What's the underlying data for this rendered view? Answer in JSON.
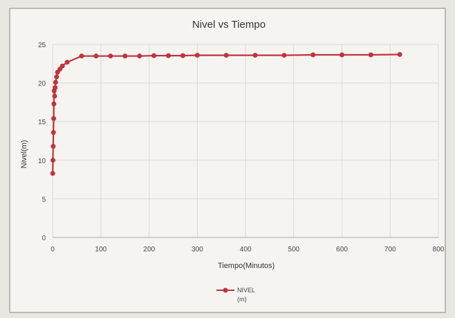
{
  "chart_data": {
    "type": "line",
    "title": "Nivel vs Tiempo",
    "xlabel": "Tiempo(Minutos)",
    "ylabel": "Nivel(m)",
    "xlim": [
      0,
      800
    ],
    "ylim": [
      0,
      25
    ],
    "x_ticks": [
      "0",
      "100",
      "200",
      "300",
      "400",
      "500",
      "600",
      "700",
      "800"
    ],
    "y_ticks": [
      "0",
      "5",
      "10",
      "15",
      "20",
      "25"
    ],
    "grid": true,
    "legend_position": "bottom",
    "series": [
      {
        "name": "NIVEL (m)",
        "legend_lines": [
          "NIVEL",
          "(m)"
        ],
        "color": "#c0343d",
        "marker": "circle",
        "x": [
          0,
          0.5,
          1,
          1.5,
          2,
          2.5,
          3,
          4,
          5,
          6,
          8,
          10,
          15,
          20,
          30,
          60,
          90,
          120,
          150,
          180,
          210,
          240,
          270,
          300,
          360,
          420,
          480,
          540,
          600,
          660,
          720
        ],
        "y": [
          8.3,
          10.0,
          11.8,
          13.6,
          15.4,
          17.3,
          19.0,
          18.3,
          19.4,
          20.1,
          20.8,
          21.4,
          21.8,
          22.2,
          22.7,
          23.5,
          23.5,
          23.5,
          23.5,
          23.5,
          23.55,
          23.55,
          23.55,
          23.6,
          23.6,
          23.6,
          23.6,
          23.65,
          23.65,
          23.65,
          23.7
        ]
      }
    ]
  }
}
